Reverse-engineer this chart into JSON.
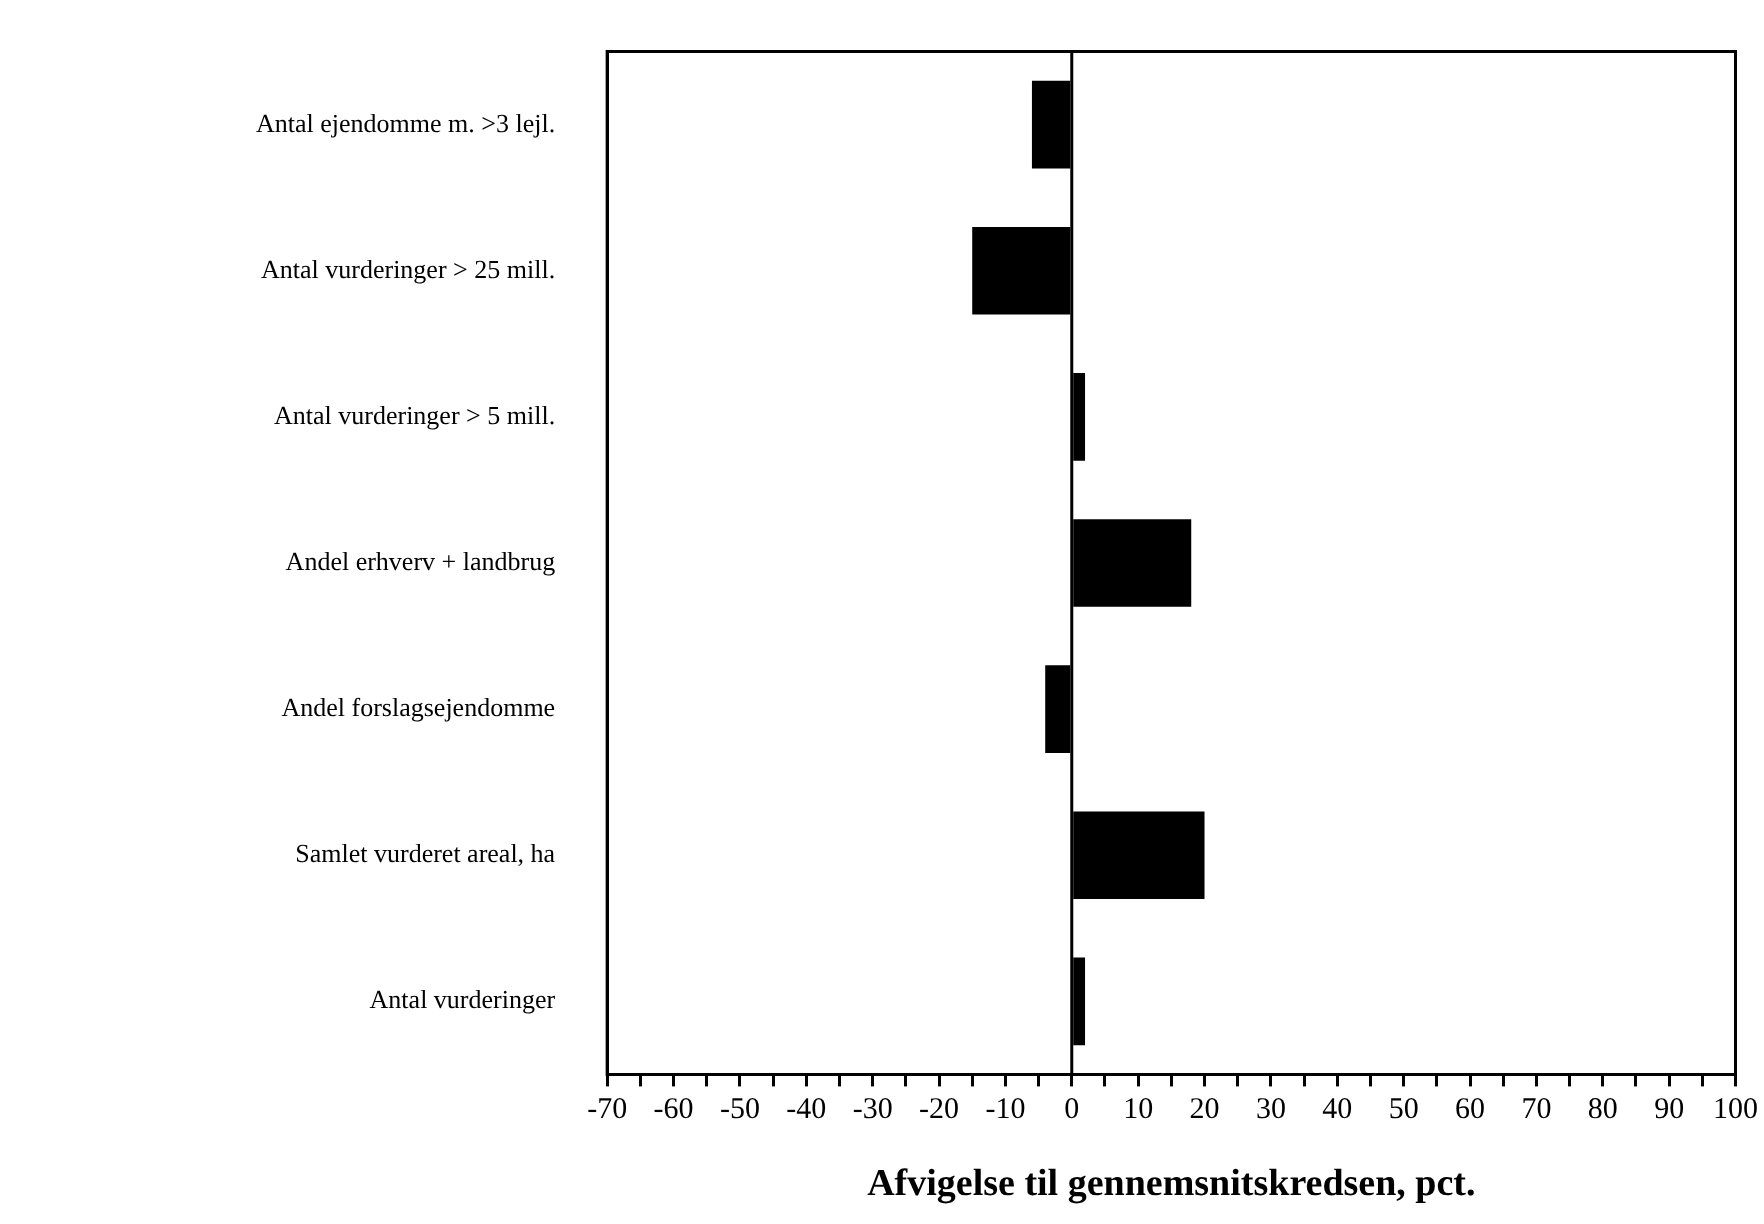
{
  "chart_data": {
    "type": "bar",
    "orientation": "horizontal",
    "xlabel": "Afvigelse til gennemsnitskredsen, pct.",
    "categories": [
      "Antal ejendomme m. >3 lejl.",
      "Antal vurderinger > 25 mill.",
      "Antal vurderinger > 5 mill.",
      "Andel erhverv + landbrug",
      "Andel forslagsejendomme",
      "Samlet vurderet areal, ha",
      "Antal vurderinger"
    ],
    "values": [
      -6,
      -15,
      2,
      18,
      -4,
      20,
      2
    ],
    "color": "#000000",
    "xlim": [
      -70,
      100
    ],
    "xticks": [
      -70,
      {
        "value": -65,
        "label": null
      },
      -60,
      {
        "value": -55,
        "label": null
      },
      -50,
      {
        "value": -45,
        "label": null
      },
      -40,
      {
        "value": -35,
        "label": null
      },
      -30,
      {
        "value": -25,
        "label": null
      },
      -20,
      {
        "value": -15,
        "label": null
      },
      -10,
      {
        "value": -5,
        "label": null
      },
      0,
      {
        "value": 5,
        "label": null
      },
      10,
      {
        "value": 15,
        "label": null
      },
      20,
      {
        "value": 25,
        "label": null
      },
      30,
      {
        "value": 35,
        "label": null
      },
      40,
      {
        "value": 45,
        "label": null
      },
      50,
      {
        "value": 55,
        "label": null
      },
      60,
      {
        "value": 65,
        "label": null
      },
      70,
      {
        "value": 75,
        "label": null
      },
      80,
      {
        "value": 85,
        "label": null
      },
      90,
      {
        "value": 95,
        "label": null
      },
      100
    ],
    "ref_lines": [
      {
        "axis": "x",
        "value": 0,
        "color": "#000000"
      }
    ],
    "grid": false,
    "legend": false
  }
}
